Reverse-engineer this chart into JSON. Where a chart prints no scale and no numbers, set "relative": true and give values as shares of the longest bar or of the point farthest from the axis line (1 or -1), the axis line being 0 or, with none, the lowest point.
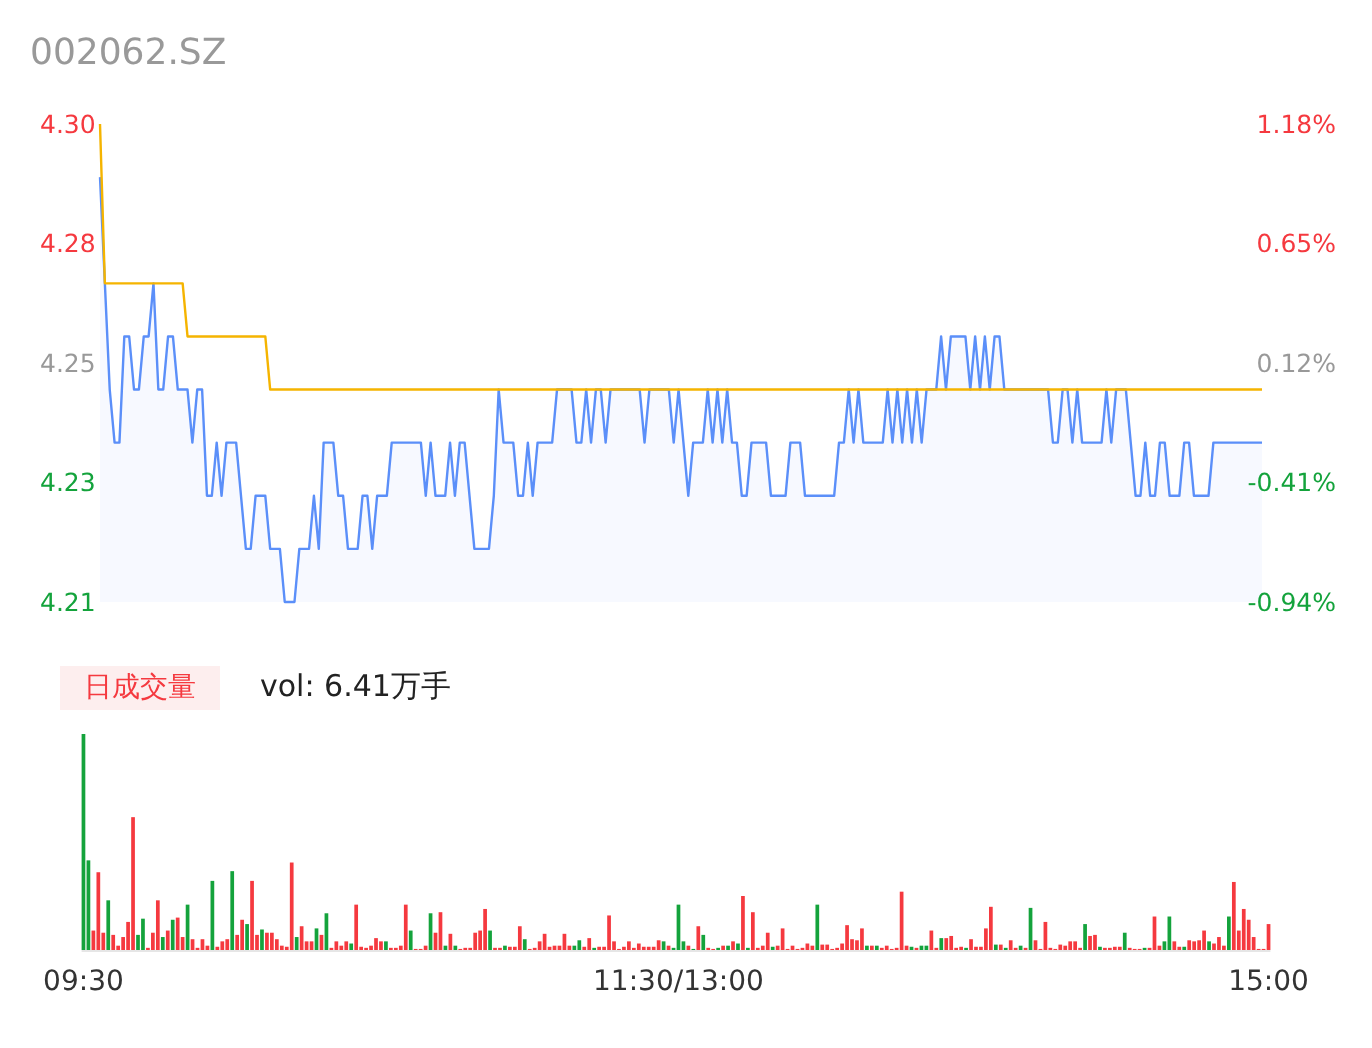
{
  "chart_data": [
    {
      "type": "line",
      "title": "002062.SZ",
      "ylim": [
        4.21,
        4.3
      ],
      "yticks": [
        {
          "value": 4.3,
          "label": "4.30"
        },
        {
          "value": 4.2775,
          "label": "4.28"
        },
        {
          "value": 4.255,
          "label": "4.25"
        },
        {
          "value": 4.2325,
          "label": "4.23"
        },
        {
          "value": 4.21,
          "label": "4.21"
        }
      ],
      "y2lim": [
        -0.941,
        1.176
      ],
      "y2ticks": [
        {
          "value": 1.176,
          "label": "1.18%"
        },
        {
          "value": 0.647,
          "label": "0.65%"
        },
        {
          "value": 0.118,
          "label": "0.12%"
        },
        {
          "value": -0.412,
          "label": "-0.41%"
        },
        {
          "value": -0.941,
          "label": "-0.94%"
        }
      ],
      "categories": [
        null,
        null,
        null,
        null,
        null,
        null,
        null,
        null,
        null,
        null,
        null,
        null,
        null,
        null,
        null,
        null,
        null,
        null,
        null,
        null,
        null,
        null,
        null,
        null,
        null,
        null,
        null,
        null,
        null,
        null,
        null,
        null,
        null,
        null,
        null,
        null,
        null,
        null,
        null,
        null,
        null,
        null,
        null,
        null,
        null,
        null,
        null,
        null,
        null,
        null,
        null,
        null,
        null,
        null,
        null,
        null,
        null,
        null,
        null,
        null,
        null,
        null,
        null,
        null,
        null,
        null,
        null,
        null,
        null,
        null,
        null,
        null,
        null,
        null,
        null,
        null,
        null,
        null,
        null,
        null,
        null,
        null,
        null,
        null,
        null,
        null,
        null,
        null,
        null,
        null,
        null,
        null,
        null,
        null,
        null,
        null,
        null,
        null,
        null,
        null,
        null,
        null,
        null,
        null,
        null,
        null,
        null,
        null,
        null,
        null,
        null,
        null,
        null,
        null,
        null,
        null,
        null,
        null,
        null,
        null,
        null,
        null,
        null,
        null,
        null,
        null,
        null,
        null,
        null,
        null,
        null,
        null,
        null,
        null,
        null,
        null,
        null,
        null,
        null,
        null,
        null,
        null,
        null,
        null,
        null,
        null,
        null,
        null,
        null,
        null,
        null,
        null,
        null,
        null,
        null,
        null,
        null,
        null,
        null,
        null,
        null,
        null,
        null,
        null,
        null,
        null,
        null,
        null,
        null,
        null,
        null,
        null,
        null,
        null,
        null,
        null,
        null,
        null,
        null,
        null,
        null,
        null,
        null,
        null,
        null,
        null,
        null,
        null,
        null,
        null,
        null,
        null,
        null,
        null,
        null,
        null,
        null,
        null,
        null,
        null,
        null,
        null,
        null,
        null,
        null,
        null,
        null,
        null,
        null,
        null,
        null,
        null,
        null,
        null,
        null,
        null,
        null,
        null,
        null,
        null,
        null,
        null,
        null,
        null,
        null,
        null,
        null,
        null,
        null,
        null,
        null,
        null,
        null,
        null,
        null,
        null,
        null,
        null,
        null,
        null
      ],
      "series": [
        {
          "type": "area",
          "color": "#5b8ff9",
          "values": [
            4.29,
            4.27,
            4.25,
            4.24,
            4.24,
            4.26,
            4.26,
            4.25,
            4.25,
            4.26,
            4.26,
            4.27,
            4.25,
            4.25,
            4.26,
            4.26,
            4.25,
            4.25,
            4.25,
            4.24,
            4.25,
            4.25,
            4.23,
            4.23,
            4.24,
            4.23,
            4.24,
            4.24,
            4.24,
            4.23,
            4.22,
            4.22,
            4.23,
            4.23,
            4.23,
            4.22,
            4.22,
            4.22,
            4.21,
            4.21,
            4.21,
            4.22,
            4.22,
            4.22,
            4.23,
            4.22,
            4.24,
            4.24,
            4.24,
            4.23,
            4.23,
            4.22,
            4.22,
            4.22,
            4.23,
            4.23,
            4.22,
            4.23,
            4.23,
            4.23,
            4.24,
            4.24,
            4.24,
            4.24,
            4.24,
            4.24,
            4.24,
            4.23,
            4.24,
            4.23,
            4.23,
            4.23,
            4.24,
            4.23,
            4.24,
            4.24,
            4.23,
            4.22,
            4.22,
            4.22,
            4.22,
            4.23,
            4.25,
            4.24,
            4.24,
            4.24,
            4.23,
            4.23,
            4.24,
            4.23,
            4.24,
            4.24,
            4.24,
            4.24,
            4.25,
            4.25,
            4.25,
            4.25,
            4.24,
            4.24,
            4.25,
            4.24,
            4.25,
            4.25,
            4.24,
            4.25,
            4.25,
            4.25,
            4.25,
            4.25,
            4.25,
            4.25,
            4.24,
            4.25,
            4.25,
            4.25,
            4.25,
            4.25,
            4.24,
            4.25,
            4.24,
            4.23,
            4.24,
            4.24,
            4.24,
            4.25,
            4.24,
            4.25,
            4.24,
            4.25,
            4.24,
            4.24,
            4.23,
            4.23,
            4.24,
            4.24,
            4.24,
            4.24,
            4.23,
            4.23,
            4.23,
            4.23,
            4.24,
            4.24,
            4.24,
            4.23,
            4.23,
            4.23,
            4.23,
            4.23,
            4.23,
            4.23,
            4.24,
            4.24,
            4.25,
            4.24,
            4.25,
            4.24,
            4.24,
            4.24,
            4.24,
            4.24,
            4.25,
            4.24,
            4.25,
            4.24,
            4.25,
            4.24,
            4.25,
            4.24,
            4.25,
            4.25,
            4.25,
            4.26,
            4.25,
            4.26,
            4.26,
            4.26,
            4.26,
            4.25,
            4.26,
            4.25,
            4.26,
            4.25,
            4.26,
            4.26,
            4.25,
            4.25,
            4.25,
            4.25,
            4.25,
            4.25,
            4.25,
            4.25,
            4.25,
            4.25,
            4.24,
            4.24,
            4.25,
            4.25,
            4.24,
            4.25,
            4.24,
            4.24,
            4.24,
            4.24,
            4.24,
            4.25,
            4.24,
            4.25,
            4.25,
            4.25,
            4.24,
            4.23,
            4.23,
            4.24,
            4.23,
            4.23,
            4.24,
            4.24,
            4.23,
            4.23,
            4.23,
            4.24,
            4.24,
            4.23,
            4.23,
            4.23,
            4.23,
            4.24,
            4.24,
            4.24,
            4.24,
            4.24,
            4.24,
            4.24,
            4.24,
            4.24,
            4.24,
            4.24
          ]
        },
        {
          "type": "line",
          "color": "#f5b400",
          "values": [
            4.3,
            4.27,
            4.27,
            4.27,
            4.27,
            4.27,
            4.27,
            4.27,
            4.27,
            4.27,
            4.27,
            4.27,
            4.27,
            4.27,
            4.27,
            4.27,
            4.27,
            4.27,
            4.26,
            4.26,
            4.26,
            4.26,
            4.26,
            4.26,
            4.26,
            4.26,
            4.26,
            4.26,
            4.26,
            4.26,
            4.26,
            4.26,
            4.26,
            4.26,
            4.26,
            4.25,
            4.25,
            4.25,
            4.25,
            4.25,
            4.25,
            4.25,
            4.25,
            4.25,
            4.25,
            4.25,
            4.25,
            4.25,
            4.25,
            4.25,
            4.25,
            4.25,
            4.25,
            4.25,
            4.25,
            4.25,
            4.25,
            4.25,
            4.25,
            4.25,
            4.25,
            4.25,
            4.25,
            4.25,
            4.25,
            4.25,
            4.25,
            4.25,
            4.25,
            4.25,
            4.25,
            4.25,
            4.25,
            4.25,
            4.25,
            4.25,
            4.25,
            4.25,
            4.25,
            4.25,
            4.25,
            4.25,
            4.25,
            4.25,
            4.25,
            4.25,
            4.25,
            4.25,
            4.25,
            4.25,
            4.25,
            4.25,
            4.25,
            4.25,
            4.25,
            4.25,
            4.25,
            4.25,
            4.25,
            4.25,
            4.25,
            4.25,
            4.25,
            4.25,
            4.25,
            4.25,
            4.25,
            4.25,
            4.25,
            4.25,
            4.25,
            4.25,
            4.25,
            4.25,
            4.25,
            4.25,
            4.25,
            4.25,
            4.25,
            4.25,
            4.25,
            4.25,
            4.25,
            4.25,
            4.25,
            4.25,
            4.25,
            4.25,
            4.25,
            4.25,
            4.25,
            4.25,
            4.25,
            4.25,
            4.25,
            4.25,
            4.25,
            4.25,
            4.25,
            4.25,
            4.25,
            4.25,
            4.25,
            4.25,
            4.25,
            4.25,
            4.25,
            4.25,
            4.25,
            4.25,
            4.25,
            4.25,
            4.25,
            4.25,
            4.25,
            4.25,
            4.25,
            4.25,
            4.25,
            4.25,
            4.25,
            4.25,
            4.25,
            4.25,
            4.25,
            4.25,
            4.25,
            4.25,
            4.25,
            4.25,
            4.25,
            4.25,
            4.25,
            4.25,
            4.25,
            4.25,
            4.25,
            4.25,
            4.25,
            4.25,
            4.25,
            4.25,
            4.25,
            4.25,
            4.25,
            4.25,
            4.25,
            4.25,
            4.25,
            4.25,
            4.25,
            4.25,
            4.25,
            4.25,
            4.25,
            4.25,
            4.25,
            4.25,
            4.25,
            4.25,
            4.25,
            4.25,
            4.25,
            4.25,
            4.25,
            4.25,
            4.25,
            4.25,
            4.25,
            4.25,
            4.25,
            4.25,
            4.25,
            4.25,
            4.25,
            4.25,
            4.25,
            4.25,
            4.25,
            4.25,
            4.25,
            4.25,
            4.25,
            4.25,
            4.25,
            4.25,
            4.25,
            4.25,
            4.25,
            4.25,
            4.25,
            4.25,
            4.25,
            4.25,
            4.25,
            4.25,
            4.25,
            4.25,
            4.25,
            4.25
          ]
        }
      ]
    },
    {
      "type": "bar",
      "title": "日成交量",
      "subtitle": "vol: 6.41万手",
      "relative": true,
      "tick_labels": "x",
      "categories": [
        "09:30",
        null,
        null,
        null,
        null,
        null,
        null,
        null,
        null,
        null,
        null,
        null,
        null,
        null,
        null,
        null,
        null,
        null,
        null,
        null,
        null,
        null,
        null,
        null,
        null,
        null,
        null,
        null,
        null,
        null,
        null,
        null,
        null,
        null,
        null,
        null,
        null,
        null,
        null,
        null,
        null,
        null,
        null,
        null,
        null,
        null,
        null,
        null,
        null,
        null,
        null,
        null,
        null,
        null,
        null,
        null,
        null,
        null,
        null,
        null,
        null,
        null,
        null,
        null,
        null,
        null,
        null,
        null,
        null,
        null,
        null,
        null,
        null,
        null,
        null,
        null,
        null,
        null,
        null,
        null,
        null,
        null,
        null,
        null,
        null,
        null,
        null,
        null,
        null,
        null,
        null,
        null,
        null,
        null,
        null,
        null,
        null,
        null,
        null,
        null,
        null,
        null,
        null,
        null,
        null,
        null,
        null,
        null,
        null,
        null,
        null,
        null,
        null,
        null,
        null,
        null,
        null,
        null,
        null,
        null,
        "11:30/13:00",
        null,
        null,
        null,
        null,
        null,
        null,
        null,
        null,
        null,
        null,
        null,
        null,
        null,
        null,
        null,
        null,
        null,
        null,
        null,
        null,
        null,
        null,
        null,
        null,
        null,
        null,
        null,
        null,
        null,
        null,
        null,
        null,
        null,
        null,
        null,
        null,
        null,
        null,
        null,
        null,
        null,
        null,
        null,
        null,
        null,
        null,
        null,
        null,
        null,
        null,
        null,
        null,
        null,
        null,
        null,
        null,
        null,
        null,
        null,
        null,
        null,
        null,
        null,
        null,
        null,
        null,
        null,
        null,
        null,
        null,
        null,
        null,
        null,
        null,
        null,
        null,
        null,
        null,
        null,
        null,
        null,
        null,
        null,
        null,
        null,
        null,
        null,
        null,
        null,
        null,
        null,
        null,
        null,
        null,
        null,
        null,
        null,
        null,
        null,
        null,
        null,
        null,
        null,
        null,
        null,
        null,
        null,
        null,
        null,
        null,
        null,
        null,
        null,
        null,
        null,
        null,
        null,
        null,
        "15:00"
      ],
      "values": [
        1,
        0.415,
        0.09,
        0.36,
        0.08,
        0.23,
        0.07,
        0.02,
        0.06,
        0.13,
        0.615,
        0.07,
        0.145,
        0.01,
        0.08,
        0.23,
        0.06,
        0.09,
        0.14,
        0.15,
        0.06,
        0.21,
        0.05,
        0.01,
        0.05,
        0.02,
        0.32,
        0.015,
        0.04,
        0.05,
        0.365,
        0.07,
        0.14,
        0.12,
        0.32,
        0.07,
        0.095,
        0.08,
        0.08,
        0.05,
        0.02,
        0.015,
        0.405,
        0.06,
        0.11,
        0.04,
        0.04,
        0.1,
        0.07,
        0.17,
        0.01,
        0.04,
        0.02,
        0.04,
        0.03,
        0.21,
        0.015,
        0.01,
        0.02,
        0.055,
        0.04,
        0.04,
        0.01,
        0.01,
        0.02,
        0.21,
        0.09,
        0.005,
        0.005,
        0.02,
        0.17,
        0.08,
        0.175,
        0.02,
        0.075,
        0.02,
        0.005,
        0.01,
        0.01,
        0.08,
        0.09,
        0.19,
        0.09,
        0.01,
        0.01,
        0.02,
        0.015,
        0.015,
        0.11,
        0.05,
        0.005,
        0.01,
        0.04,
        0.075,
        0.015,
        0.02,
        0.02,
        0.075,
        0.02,
        0.02,
        0.045,
        0.015,
        0.055,
        0.01,
        0.015,
        0.015,
        0.16,
        0.04,
        0.005,
        0.015,
        0.04,
        0.01,
        0.03,
        0.015,
        0.015,
        0.015,
        0.045,
        0.04,
        0.02,
        0.01,
        0.21,
        0.04,
        0.02,
        0.005,
        0.11,
        0.07,
        0.01,
        0.005,
        0.01,
        0.02,
        0.02,
        0.04,
        0.03,
        0.25,
        0.01,
        0.175,
        0.01,
        0.02,
        0.08,
        0.015,
        0.02,
        0.1,
        0.005,
        0.02,
        0.005,
        0.01,
        0.03,
        0.02,
        0.21,
        0.025,
        0.025,
        0.005,
        0.01,
        0.03,
        0.115,
        0.05,
        0.045,
        0.1,
        0.02,
        0.02,
        0.02,
        0.01,
        0.02,
        0.005,
        0.01,
        0.27,
        0.02,
        0.015,
        0.01,
        0.02,
        0.02,
        0.09,
        0.01,
        0.055,
        0.055,
        0.065,
        0.01,
        0.015,
        0.01,
        0.05,
        0.015,
        0.015,
        0.1,
        0.2,
        0.025,
        0.025,
        0.01,
        0.045,
        0.01,
        0.02,
        0.01,
        0.195,
        0.045,
        0.005,
        0.13,
        0.01,
        0.005,
        0.025,
        0.02,
        0.04,
        0.04,
        0.01,
        0.12,
        0.065,
        0.07,
        0.015,
        0.01,
        0.01,
        0.015,
        0.015,
        0.08,
        0.01,
        0.005,
        0.005,
        0.01,
        0.01,
        0.155,
        0.02,
        0.04,
        0.155,
        0.04,
        0.015,
        0.015,
        0.045,
        0.04,
        0.045,
        0.09,
        0.04,
        0.03,
        0.06,
        0.02,
        0.155,
        0.315,
        0.09,
        0.19,
        0.14,
        0.06,
        0.005,
        0.005,
        0.12
      ],
      "colors": [
        "#14a33c",
        "#14a33c",
        "#f5393f",
        "#f5393f",
        "#f5393f",
        "#14a33c",
        "#f5393f",
        "#f5393f",
        "#f5393f",
        "#f5393f",
        "#f5393f",
        "#14a33c",
        "#14a33c",
        "#f5393f",
        "#f5393f",
        "#f5393f",
        "#14a33c",
        "#f5393f",
        "#14a33c",
        "#f5393f",
        "#f5393f",
        "#14a33c",
        "#f5393f",
        "#f5393f",
        "#f5393f",
        "#f5393f",
        "#14a33c",
        "#f5393f",
        "#f5393f",
        "#f5393f",
        "#14a33c",
        "#f5393f",
        "#f5393f",
        "#14a33c",
        "#f5393f",
        "#f5393f",
        "#14a33c",
        "#f5393f",
        "#f5393f",
        "#f5393f",
        "#f5393f",
        "#f5393f",
        "#f5393f",
        "#14a33c",
        "#f5393f",
        "#f5393f",
        "#f5393f",
        "#14a33c",
        "#f5393f",
        "#14a33c",
        "#f5393f",
        "#f5393f",
        "#f5393f",
        "#f5393f",
        "#14a33c",
        "#f5393f",
        "#f5393f",
        "#f5393f",
        "#f5393f",
        "#f5393f",
        "#f5393f",
        "#14a33c",
        "#f5393f",
        "#f5393f",
        "#f5393f",
        "#f5393f",
        "#14a33c",
        "#f5393f",
        "#f5393f",
        "#f5393f",
        "#14a33c",
        "#f5393f",
        "#f5393f",
        "#14a33c",
        "#f5393f",
        "#14a33c",
        "#f5393f",
        "#f5393f",
        "#f5393f",
        "#f5393f",
        "#f5393f",
        "#f5393f",
        "#14a33c",
        "#f5393f",
        "#f5393f",
        "#14a33c",
        "#f5393f",
        "#f5393f",
        "#f5393f",
        "#14a33c",
        "#f5393f",
        "#f5393f",
        "#f5393f",
        "#f5393f",
        "#f5393f",
        "#f5393f",
        "#f5393f",
        "#f5393f",
        "#f5393f",
        "#14a33c",
        "#14a33c",
        "#f5393f",
        "#f5393f",
        "#14a33c",
        "#f5393f",
        "#f5393f",
        "#f5393f",
        "#f5393f",
        "#f5393f",
        "#f5393f",
        "#f5393f",
        "#f5393f",
        "#f5393f",
        "#f5393f",
        "#f5393f",
        "#f5393f",
        "#f5393f",
        "#14a33c",
        "#f5393f",
        "#14a33c",
        "#14a33c",
        "#14a33c",
        "#f5393f",
        "#14a33c",
        "#f5393f",
        "#14a33c",
        "#f5393f",
        "#f5393f",
        "#14a33c",
        "#f5393f",
        "#14a33c",
        "#f5393f",
        "#14a33c",
        "#f5393f",
        "#14a33c",
        "#f5393f",
        "#f5393f",
        "#f5393f",
        "#f5393f",
        "#14a33c",
        "#f5393f",
        "#f5393f",
        "#f5393f",
        "#f5393f",
        "#f5393f",
        "#f5393f",
        "#f5393f",
        "#f5393f",
        "#14a33c",
        "#f5393f",
        "#f5393f",
        "#f5393f",
        "#f5393f",
        "#f5393f",
        "#f5393f",
        "#f5393f",
        "#f5393f",
        "#f5393f",
        "#14a33c",
        "#f5393f",
        "#14a33c",
        "#f5393f",
        "#f5393f",
        "#f5393f",
        "#f5393f",
        "#f5393f",
        "#f5393f",
        "#14a33c",
        "#f5393f",
        "#14a33c",
        "#14a33c",
        "#f5393f",
        "#f5393f",
        "#14a33c",
        "#f5393f",
        "#f5393f",
        "#f5393f",
        "#f5393f",
        "#14a33c",
        "#f5393f",
        "#f5393f",
        "#f5393f",
        "#f5393f",
        "#f5393f",
        "#14a33c",
        "#f5393f",
        "#14a33c",
        "#f5393f",
        "#f5393f",
        "#14a33c",
        "#f5393f",
        "#14a33c",
        "#f5393f",
        "#f5393f",
        "#f5393f",
        "#f5393f",
        "#f5393f",
        "#f5393f",
        "#f5393f",
        "#f5393f",
        "#f5393f",
        "#f5393f",
        "#14a33c",
        "#f5393f",
        "#f5393f",
        "#14a33c",
        "#f5393f",
        "#f5393f",
        "#f5393f",
        "#f5393f",
        "#14a33c",
        "#f5393f",
        "#f5393f",
        "#f5393f",
        "#14a33c",
        "#f5393f",
        "#f5393f",
        "#f5393f",
        "#14a33c",
        "#14a33c",
        "#f5393f",
        "#f5393f",
        "#14a33c",
        "#f5393f",
        "#f5393f",
        "#f5393f",
        "#f5393f",
        "#14a33c",
        "#f5393f",
        "#f5393f",
        "#f5393f",
        "#14a33c",
        "#f5393f",
        "#f5393f",
        "#f5393f",
        "#f5393f",
        "#f5393f",
        "#f5393f",
        "#f5393f",
        "#f5393f"
      ]
    }
  ]
}
